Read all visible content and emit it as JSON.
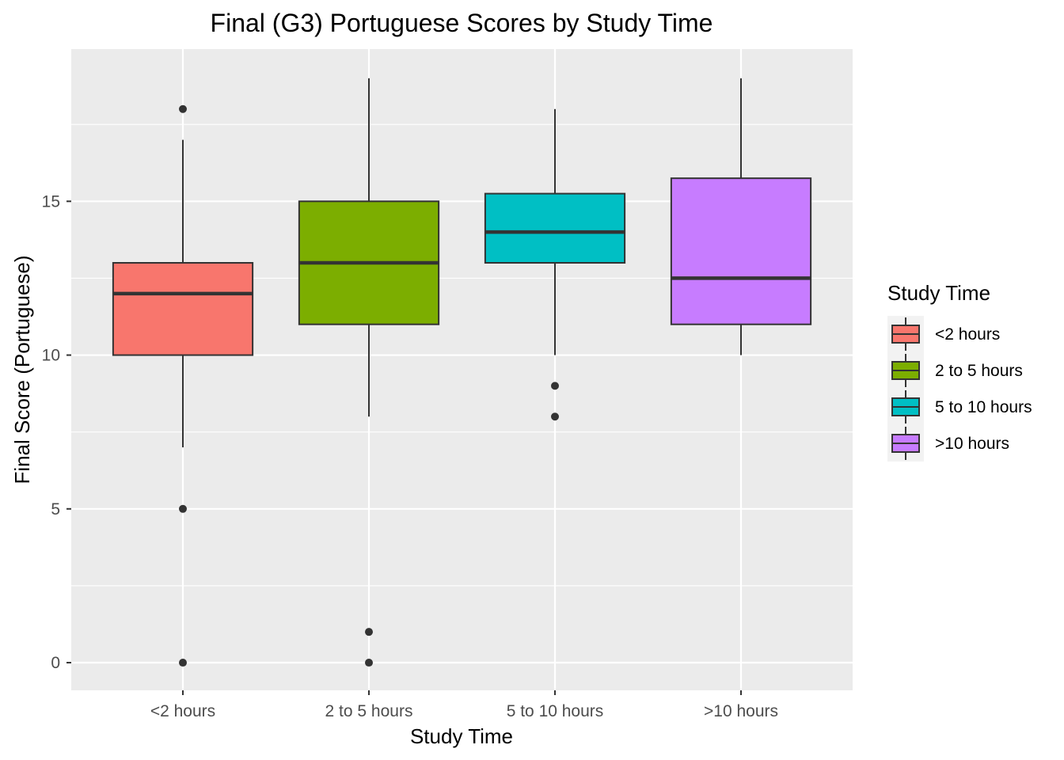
{
  "chart_data": {
    "type": "boxplot",
    "title": "Final (G3) Portuguese Scores by Study Time",
    "xlabel": "Study Time",
    "ylabel": "Final Score (Portuguese)",
    "ylim": [
      -0.9,
      19.95
    ],
    "yticks": [
      0,
      5,
      10,
      15
    ],
    "ytick_labels": [
      "0",
      "5",
      "10",
      "15"
    ],
    "categories": [
      "<2 hours",
      "2 to 5 hours",
      "5 to 10 hours",
      ">10 hours"
    ],
    "boxes": [
      {
        "category": "<2 hours",
        "whisker_low": 7,
        "q1": 10,
        "median": 12,
        "q3": 13,
        "whisker_high": 17,
        "outliers": [
          18,
          5,
          0
        ],
        "color": "#F8766D"
      },
      {
        "category": "2 to 5 hours",
        "whisker_low": 8,
        "q1": 11,
        "median": 13,
        "q3": 15,
        "whisker_high": 19,
        "outliers": [
          1,
          0
        ],
        "color": "#7CAE00"
      },
      {
        "category": "5 to 10 hours",
        "whisker_low": 10,
        "q1": 13,
        "median": 14,
        "q3": 15.25,
        "whisker_high": 18,
        "outliers": [
          9,
          8
        ],
        "color": "#00BFC4"
      },
      {
        "category": ">10 hours",
        "whisker_low": 10,
        "q1": 11,
        "median": 12.5,
        "q3": 15.75,
        "whisker_high": 19,
        "outliers": [],
        "color": "#C77CFF"
      }
    ],
    "legend": {
      "title": "Study Time",
      "position": "right",
      "items": [
        "<2 hours",
        "2 to 5 hours",
        "5 to 10 hours",
        ">10 hours"
      ]
    },
    "grid": true,
    "panel_background": "#EBEBEB",
    "grid_color": "#FFFFFF"
  }
}
